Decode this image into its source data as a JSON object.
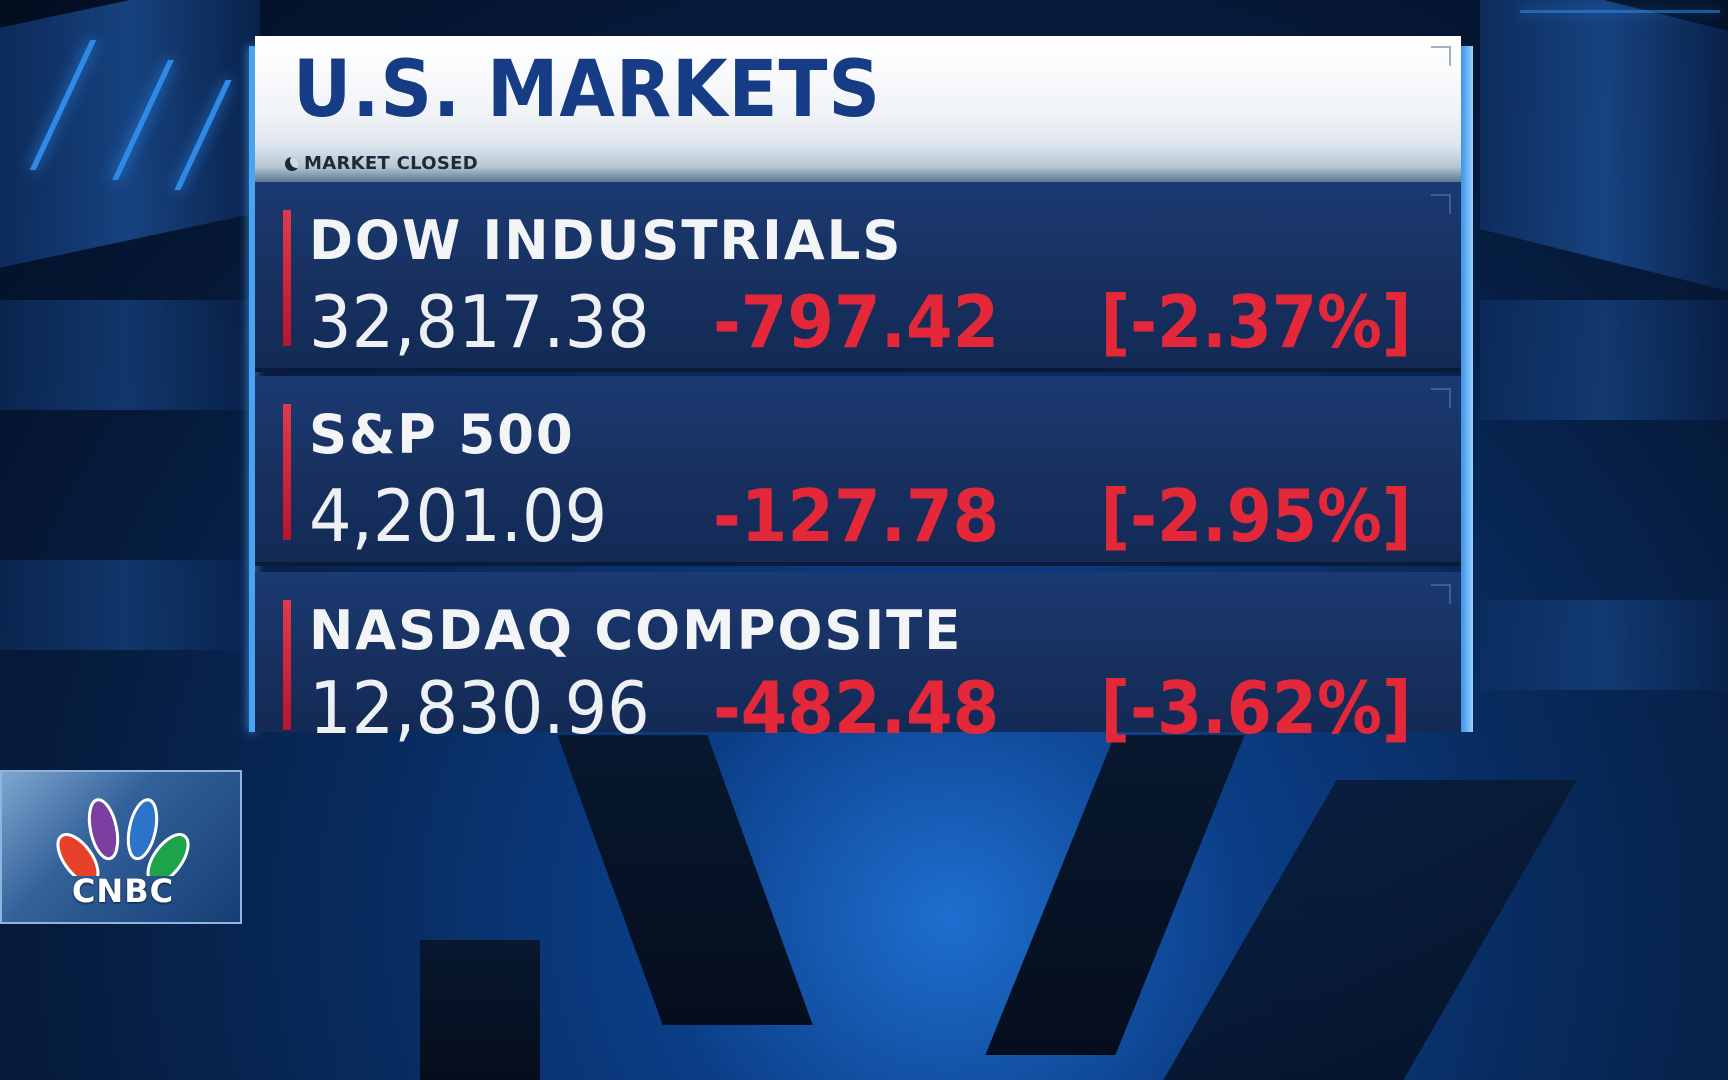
{
  "panel": {
    "title": "U.S. MARKETS",
    "status": "MARKET CLOSED",
    "status_icon": "moon-icon"
  },
  "indices": [
    {
      "name": "DOW INDUSTRIALS",
      "price": "32,817.38",
      "change": "-797.42",
      "percent": "[-2.37%]"
    },
    {
      "name": "S&P 500",
      "price": "4,201.09",
      "change": "-127.78",
      "percent": "[-2.95%]"
    },
    {
      "name": "NASDAQ COMPOSITE",
      "price": "12,830.96",
      "change": "-482.48",
      "percent": "[-3.62%]"
    }
  ],
  "logo": {
    "text": "CNBC"
  },
  "colors": {
    "title": "#173c86",
    "negative": "#e4283a",
    "row_bg": "#17305f",
    "accent_bar": "#e23a4c"
  }
}
